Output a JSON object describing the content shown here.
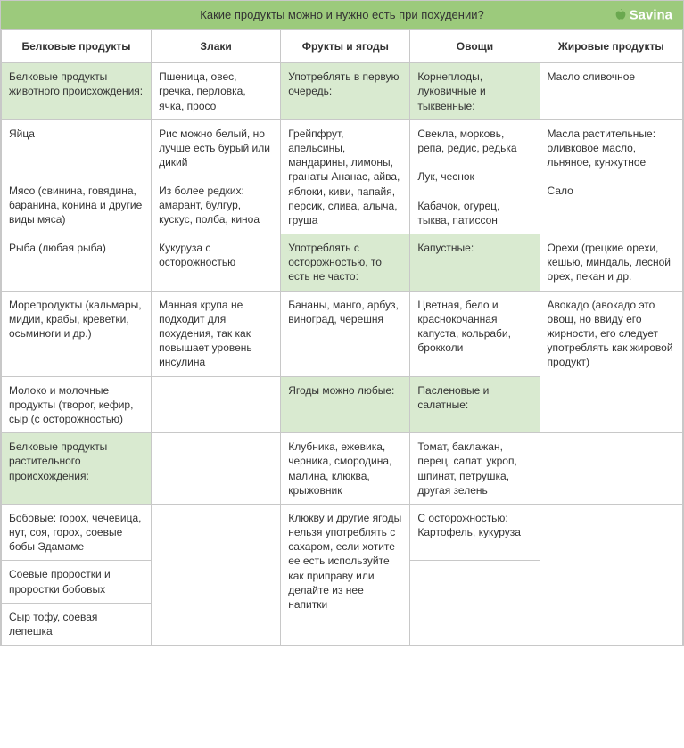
{
  "title": "Какие продукты можно и нужно есть при похудении?",
  "brand": "Savina",
  "colors": {
    "header_bg": "#9cca7c",
    "highlight_bg": "#d9ead0",
    "border": "#c8c8c8",
    "text": "#333333",
    "brand_text": "#ffffff"
  },
  "typography": {
    "font_family": "Arial",
    "cell_fontsize": 12,
    "header_fontsize": 12,
    "title_fontsize": 13
  },
  "table": {
    "type": "table",
    "column_widths_pct": [
      22,
      19,
      19,
      19,
      21
    ],
    "columns": [
      "Белковые продукты",
      "Злаки",
      "Фрукты и ягоды",
      "Овощи",
      "Жировые продукты"
    ],
    "rows": [
      [
        {
          "text": "Белковые продукты животного происхождения:",
          "hl": true,
          "rowspan": 1
        },
        {
          "text": "Пшеница, овес, гречка, перловка, ячка, просо",
          "rowspan": 1
        },
        {
          "text": "Употреблять в первую очередь:",
          "hl": true,
          "rowspan": 1
        },
        {
          "text": "Корнеплоды, луковичные и тыквенные:",
          "hl": true,
          "rowspan": 1
        },
        {
          "text": "Масло сливочное",
          "rowspan": 1
        }
      ],
      [
        {
          "text": "Яйца",
          "rowspan": 1
        },
        {
          "text": "Рис можно белый, но лучше есть бурый или дикий",
          "rowspan": 1
        },
        {
          "text": "Грейпфрут, апельсины, мандарины, лимоны, гранаты Ананас, айва, яблоки, киви, папайя, персик, слива, алыча, груша",
          "rowspan": 2
        },
        {
          "text": "Свекла, морковь, репа, редис, редька\n\nЛук, чеснок\n\nКабачок, огурец, тыква, патиссон",
          "rowspan": 2
        },
        {
          "text": "Масла растительные: оливковое масло, льняное, кунжутное",
          "rowspan": 1
        }
      ],
      [
        {
          "text": "Мясо (свинина, говядина, баранина, конина и другие виды мяса)",
          "rowspan": 1
        },
        {
          "text": "Из более редких: амарант, булгур, кускус, полба, киноа",
          "rowspan": 1
        },
        null,
        null,
        {
          "text": "Сало",
          "rowspan": 1
        }
      ],
      [
        {
          "text": "Рыба (любая рыба)",
          "rowspan": 2
        },
        {
          "text": "Кукуруза с осторожностью",
          "rowspan": 2
        },
        {
          "text": "Употреблять с осторожностью, то есть не часто:",
          "hl": true,
          "rowspan": 1
        },
        {
          "text": "Капустные:",
          "hl": true,
          "rowspan": 1
        },
        {
          "text": "Орехи (грецкие орехи, кешью, миндаль, лесной орех, пекан и др.",
          "rowspan": 1
        }
      ],
      [
        null,
        null,
        {
          "text": "Бананы, манго, арбуз, виноград, черешня",
          "rowspan": 2
        },
        {
          "text": "Цветная, бело и краснокочанная капуста, кольраби, брокколи",
          "rowspan": 2
        },
        {
          "text": "Авокадо (авокадо это овощ, но ввиду его жирности, его следует употреблять как жировой продукт)",
          "rowspan": 3
        }
      ],
      [
        {
          "text": "Морепродукты (кальмары, мидии, крабы, креветки, осьминоги и др.)",
          "rowspan": 1
        },
        {
          "text": "Манная крупа не подходит для похудения, так как повышает уровень инсулина",
          "rowspan": 1
        },
        null,
        null,
        null
      ],
      [
        {
          "text": "Молоко и молочные продукты (творог, кефир, сыр (с осторожностью)",
          "rowspan": 1
        },
        {
          "text": "",
          "rowspan": 1
        },
        {
          "text": "Ягоды можно любые:",
          "hl": true,
          "rowspan": 1
        },
        {
          "text": "Пасленовые и салатные:",
          "hl": true,
          "rowspan": 1
        },
        null
      ],
      [
        {
          "text": "Белковые продукты растительного происхождения:",
          "hl": true,
          "rowspan": 1
        },
        {
          "text": "",
          "rowspan": 1
        },
        {
          "text": "Клубника, ежевика, черника, смородина, малина, клюква, крыжовник",
          "rowspan": 1
        },
        {
          "text": "Томат, баклажан, перец, салат, укроп, шпинат, петрушка, другая зелень",
          "rowspan": 1
        },
        {
          "text": "",
          "rowspan": 1
        }
      ],
      [
        {
          "text": "Бобовые: горох, чечевица, нут, соя, горох, соевые бобы Эдамаме",
          "rowspan": 1
        },
        {
          "text": "",
          "rowspan": 3
        },
        {
          "text": "Клюкву и другие ягоды нельзя употреблять с сахаром, если хотите ее есть используйте как приправу или делайте из нее напитки",
          "rowspan": 3
        },
        {
          "text": "С осторожностью: Картофель, кукуруза",
          "rowspan": 1
        },
        {
          "text": "",
          "rowspan": 3
        }
      ],
      [
        {
          "text": "Соевые проростки и проростки бобовых",
          "rowspan": 1
        },
        null,
        null,
        {
          "text": "",
          "rowspan": 2
        },
        null
      ],
      [
        {
          "text": "Сыр тофу, соевая лепешка",
          "rowspan": 1
        },
        null,
        null,
        null,
        null
      ]
    ]
  }
}
